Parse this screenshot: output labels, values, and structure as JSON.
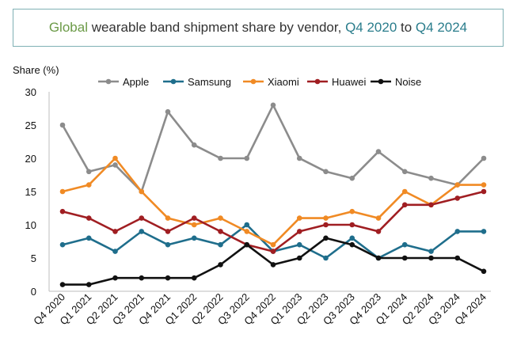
{
  "title": {
    "part1": "Global",
    "part2": " wearable band shipment share by vendor, ",
    "part3": "Q4 2020",
    "part4": " to ",
    "part5": "Q4 2024"
  },
  "chart_data": {
    "type": "line",
    "title": "Global wearable band shipment share by vendor, Q4 2020 to Q4 2024",
    "xlabel": "",
    "ylabel": "Share (%)",
    "ylim": [
      0,
      30
    ],
    "yticks": [
      0,
      5,
      10,
      15,
      20,
      25,
      30
    ],
    "grid": false,
    "legend_position": "top",
    "categories": [
      "Q4 2020",
      "Q1 2021",
      "Q2 2021",
      "Q3 2021",
      "Q4 2021",
      "Q1 2022",
      "Q2 2022",
      "Q3 2022",
      "Q4 2022",
      "Q1 2023",
      "Q2 2023",
      "Q3 2023",
      "Q4 2023",
      "Q1 2024",
      "Q2 2024",
      "Q3 2024",
      "Q4 2024"
    ],
    "series": [
      {
        "name": "Apple",
        "color": "#8c8c8c",
        "values": [
          25,
          18,
          19,
          15,
          27,
          22,
          20,
          20,
          28,
          20,
          18,
          17,
          21,
          18,
          17,
          16,
          20
        ]
      },
      {
        "name": "Samsung",
        "color": "#1f6e8c",
        "values": [
          7,
          8,
          6,
          9,
          7,
          8,
          7,
          10,
          6,
          7,
          5,
          8,
          5,
          7,
          6,
          9,
          9
        ]
      },
      {
        "name": "Xiaomi",
        "color": "#f08a24",
        "values": [
          15,
          16,
          20,
          15,
          11,
          10,
          11,
          9,
          7,
          11,
          11,
          12,
          11,
          15,
          13,
          16,
          16
        ]
      },
      {
        "name": "Huawei",
        "color": "#a01e22",
        "values": [
          12,
          11,
          9,
          11,
          9,
          11,
          9,
          7,
          6,
          9,
          10,
          10,
          9,
          13,
          13,
          14,
          15
        ]
      },
      {
        "name": "Noise",
        "color": "#111111",
        "values": [
          1,
          1,
          2,
          2,
          2,
          2,
          4,
          7,
          4,
          5,
          8,
          7,
          5,
          5,
          5,
          5,
          3
        ]
      }
    ]
  }
}
